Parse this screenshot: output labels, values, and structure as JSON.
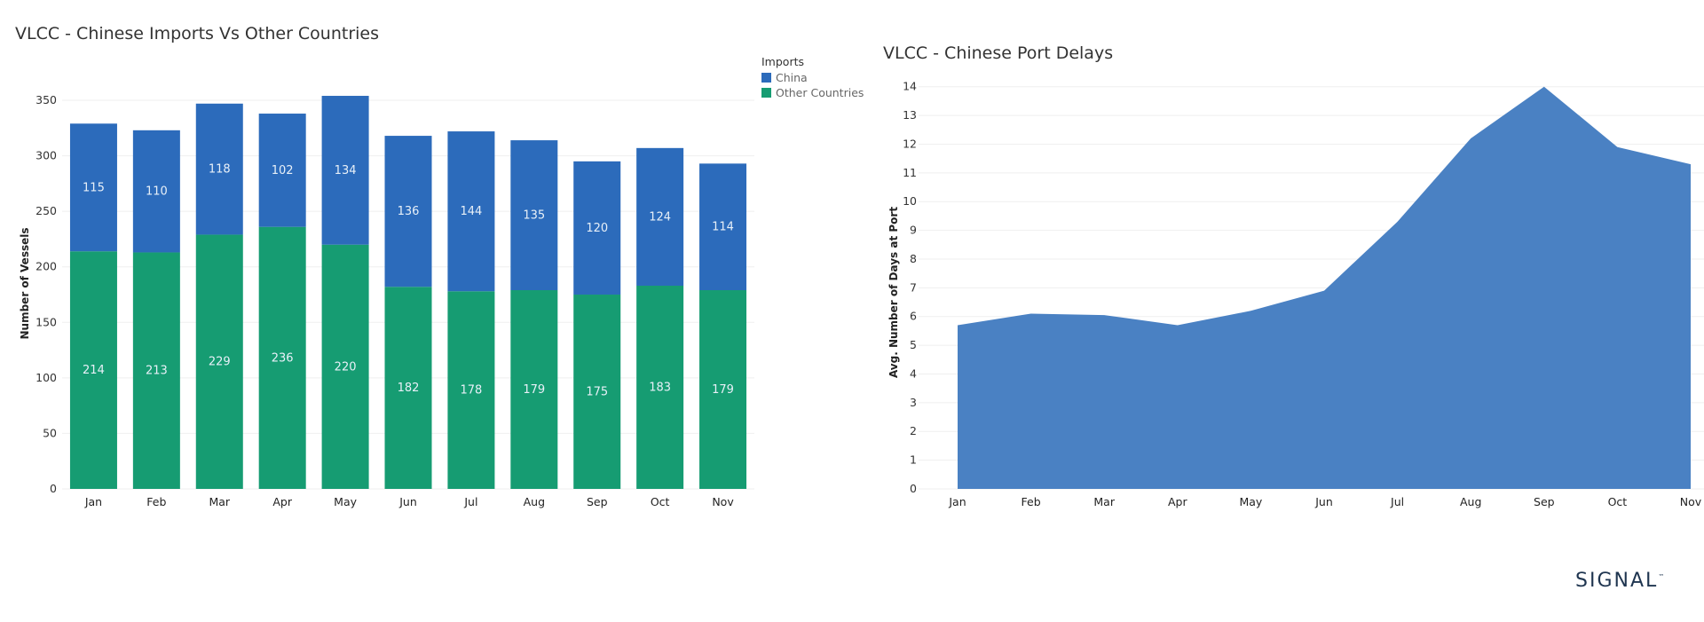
{
  "logo": "SIGNAL",
  "logo_tm": "™",
  "chart_data": [
    {
      "type": "bar",
      "stacked": true,
      "title": "VLCC - Chinese Imports Vs Other Countries",
      "xlabel": "",
      "ylabel": "Number of Vessels",
      "ylim": [
        0,
        370
      ],
      "yticks": [
        0,
        50,
        100,
        150,
        200,
        250,
        300,
        350
      ],
      "categories": [
        "Jan",
        "Feb",
        "Mar",
        "Apr",
        "May",
        "Jun",
        "Jul",
        "Aug",
        "Sep",
        "Oct",
        "Nov"
      ],
      "legend_title": "Imports",
      "legend_position": "top-right",
      "series": [
        {
          "name": "Other Countries",
          "color": "#169c72",
          "values": [
            214,
            213,
            229,
            236,
            220,
            182,
            178,
            179,
            175,
            183,
            179
          ]
        },
        {
          "name": "China",
          "color": "#2c6bbb",
          "values": [
            115,
            110,
            118,
            102,
            134,
            136,
            144,
            135,
            120,
            124,
            114
          ]
        }
      ],
      "grid": true
    },
    {
      "type": "area",
      "title": "VLCC - Chinese Port Delays",
      "xlabel": "",
      "ylabel": "Avg. Number of Days at Port",
      "ylim": [
        0,
        14.3
      ],
      "yticks": [
        0,
        1,
        2,
        3,
        4,
        5,
        6,
        7,
        8,
        9,
        10,
        11,
        12,
        13,
        14
      ],
      "categories": [
        "Jan",
        "Feb",
        "Mar",
        "Apr",
        "May",
        "Jun",
        "Jul",
        "Aug",
        "Sep",
        "Oct",
        "Nov"
      ],
      "series": [
        {
          "color": "#4a81c3",
          "values": [
            5.7,
            6.1,
            6.05,
            5.7,
            6.2,
            6.9,
            9.3,
            12.2,
            14.0,
            11.9,
            11.3
          ]
        }
      ],
      "grid": true
    }
  ]
}
